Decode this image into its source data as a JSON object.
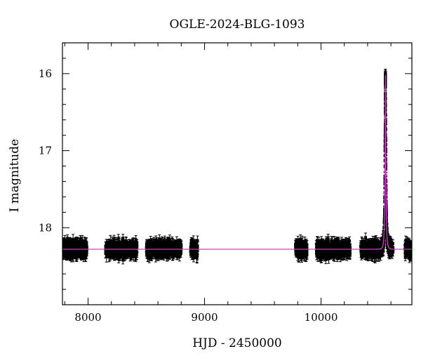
{
  "chart_data": {
    "type": "scatter",
    "title": "OGLE-2024-BLG-1093",
    "xlabel": "HJD - 2450000",
    "ylabel": "I magnitude",
    "xlim": [
      7780,
      10780
    ],
    "ylim": [
      19.0,
      15.6
    ],
    "y_inverted": true,
    "x_ticks": [
      8000,
      9000,
      10000
    ],
    "y_ticks": [
      16,
      17,
      18
    ],
    "x_minor_step": 200,
    "y_minor_step": 0.2,
    "baseline_mag": 18.28,
    "scatter_mag": 0.05,
    "observing_seasons": [
      {
        "start": 7780,
        "end": 7990
      },
      {
        "start": 8150,
        "end": 8420
      },
      {
        "start": 8500,
        "end": 8800
      },
      {
        "start": 8880,
        "end": 8940
      },
      {
        "start": 9780,
        "end": 9880
      },
      {
        "start": 9960,
        "end": 10250
      },
      {
        "start": 10340,
        "end": 10620
      },
      {
        "start": 10720,
        "end": 10780
      }
    ],
    "event": {
      "peak_time": 10553,
      "peak_mag": 16.02,
      "duration_days": 10
    },
    "model_color": "#e030e0",
    "point_color": "#000000",
    "series": [
      {
        "type": "points_with_errorbars"
      },
      {
        "type": "model_curve"
      }
    ]
  }
}
